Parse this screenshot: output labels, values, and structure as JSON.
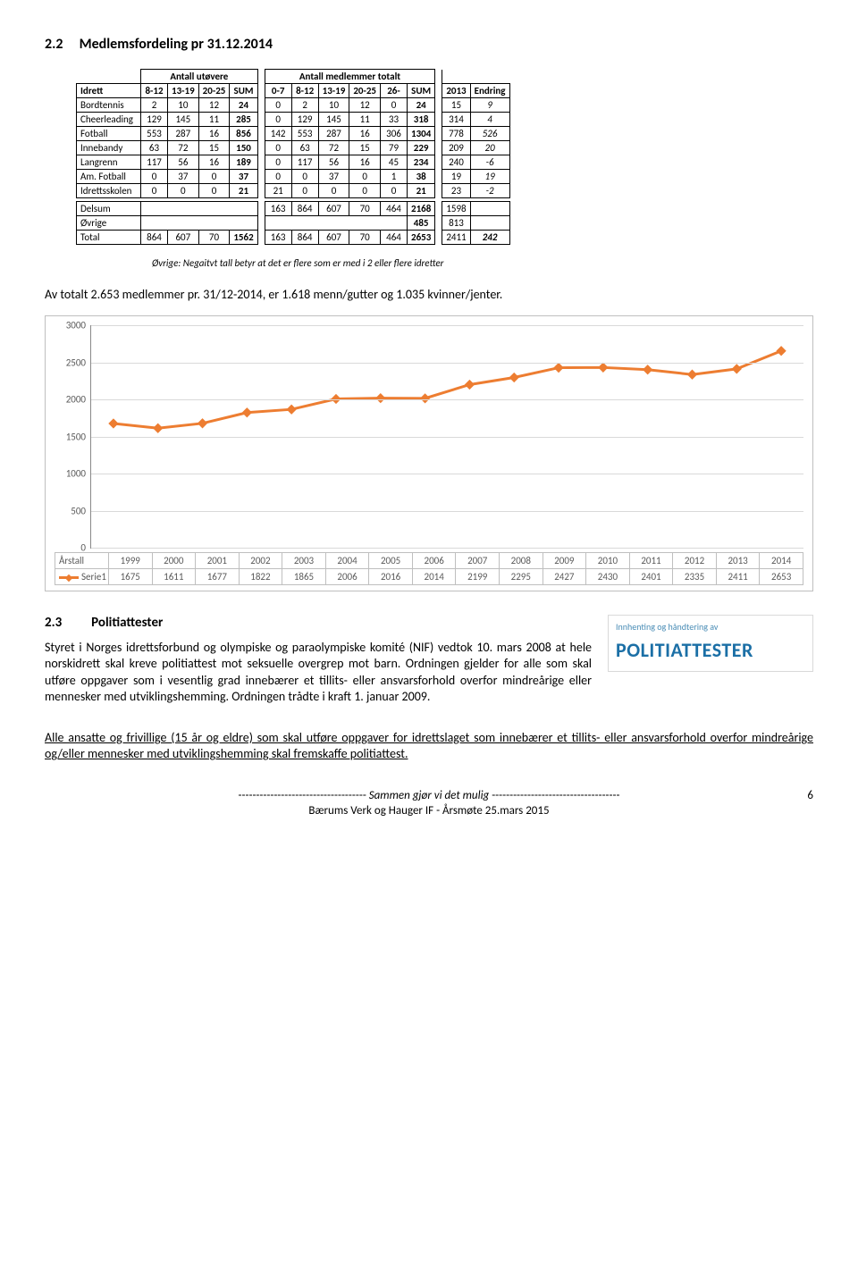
{
  "heading1": {
    "num": "2.2",
    "title": "Medlemsfordeling pr 31.12.2014"
  },
  "tableTop": {
    "leftTitle": "Antall utøvere",
    "rightTitle": "Antall medlemmer totalt",
    "headLeft": [
      "Idrett",
      "8-12",
      "13-19",
      "20-25",
      "SUM"
    ],
    "headRight": [
      "0-7",
      "8-12",
      "13-19",
      "20-25",
      "26-",
      "SUM"
    ],
    "headExtra": [
      "2013",
      "Endring"
    ],
    "rows": [
      {
        "label": "Bordtennis",
        "l": [
          "2",
          "10",
          "12",
          "24"
        ],
        "r": [
          "0",
          "2",
          "10",
          "12",
          "0",
          "24"
        ],
        "e": [
          "15",
          "9"
        ]
      },
      {
        "label": "Cheerleading",
        "l": [
          "129",
          "145",
          "11",
          "285"
        ],
        "r": [
          "0",
          "129",
          "145",
          "11",
          "33",
          "318"
        ],
        "e": [
          "314",
          "4"
        ]
      },
      {
        "label": "Fotball",
        "l": [
          "553",
          "287",
          "16",
          "856"
        ],
        "r": [
          "142",
          "553",
          "287",
          "16",
          "306",
          "1304"
        ],
        "e": [
          "778",
          "526"
        ]
      },
      {
        "label": "Innebandy",
        "l": [
          "63",
          "72",
          "15",
          "150"
        ],
        "r": [
          "0",
          "63",
          "72",
          "15",
          "79",
          "229"
        ],
        "e": [
          "209",
          "20"
        ]
      },
      {
        "label": "Langrenn",
        "l": [
          "117",
          "56",
          "16",
          "189"
        ],
        "r": [
          "0",
          "117",
          "56",
          "16",
          "45",
          "234"
        ],
        "e": [
          "240",
          "-6"
        ]
      },
      {
        "label": "Am. Fotball",
        "l": [
          "0",
          "37",
          "0",
          "37"
        ],
        "r": [
          "0",
          "0",
          "37",
          "0",
          "1",
          "38"
        ],
        "e": [
          "19",
          "19"
        ]
      },
      {
        "label": "Idrettsskolen",
        "l": [
          "0",
          "0",
          "0",
          "21"
        ],
        "r": [
          "21",
          "0",
          "0",
          "0",
          "0",
          "21"
        ],
        "e": [
          "23",
          "-2"
        ]
      }
    ],
    "sumRows": [
      {
        "label": "Delsum",
        "l": [
          "",
          "",
          "",
          ""
        ],
        "r": [
          "163",
          "864",
          "607",
          "70",
          "464",
          "2168"
        ],
        "e": [
          "1598",
          ""
        ]
      },
      {
        "label": "Øvrige",
        "l": [
          "",
          "",
          "",
          ""
        ],
        "r": [
          "",
          "",
          "",
          "",
          "",
          "485"
        ],
        "e": [
          "813",
          ""
        ]
      },
      {
        "label": "Total",
        "l": [
          "864",
          "607",
          "70",
          "1562"
        ],
        "r": [
          "163",
          "864",
          "607",
          "70",
          "464",
          "2653"
        ],
        "e": [
          "2411",
          "242"
        ]
      }
    ]
  },
  "note": "Øvrige: Negaitvt tall betyr at det er flere som er med i 2 eller flere idretter",
  "body1": "Av totalt 2.653 medlemmer pr. 31/12-2014, er 1.618 menn/gutter og 1.035 kvinner/jenter.",
  "chart": {
    "ymax": 3000,
    "ystep": 500,
    "years": [
      "1999",
      "2000",
      "2001",
      "2002",
      "2003",
      "2004",
      "2005",
      "2006",
      "2007",
      "2008",
      "2009",
      "2010",
      "2011",
      "2012",
      "2013",
      "2014"
    ],
    "values": [
      1675,
      1611,
      1677,
      1822,
      1865,
      2006,
      2016,
      2014,
      2199,
      2295,
      2427,
      2430,
      2401,
      2335,
      2411,
      2653
    ],
    "rowLabels": {
      "x": "Årstall",
      "s": "Serie1"
    },
    "line_color": "#ed7d31",
    "marker_color": "#ed7d31",
    "grid_color": "#d9d9d9"
  },
  "heading2": {
    "num": "2.3",
    "title": "Politiattester"
  },
  "body2": "Styret i Norges idrettsforbund og olympiske og paraolympiske komité (NIF) vedtok 10. mars 2008 at hele norskidrett skal kreve politiattest mot seksuelle overgrep mot barn. Ordningen gjelder for alle som skal utføre oppgaver som i vesentlig grad innebærer et tillits- eller ansvarsforhold overfor mindreårige eller mennesker med utviklingshemming. Ordningen trådte i kraft 1. januar 2009.",
  "politi": {
    "small": "Innhenting og håndtering av",
    "big": "POLITIATTESTER"
  },
  "body3": "Alle ansatte og frivillige (15 år og eldre) som skal utføre oppgaver for idrettslaget som innebærer et tillits- eller ansvarsforhold overfor mindreårige og/eller mennesker med utviklingshemming skal fremskaffe politiattest.",
  "footer": {
    "line1a": "------------------------------------ ",
    "slogan": "Sammen gjør vi det mulig",
    "line1b": "------------------------------------",
    "line2": "Bærums Verk og Hauger IF  -  Årsmøte 25.mars 2015",
    "page": "6"
  }
}
